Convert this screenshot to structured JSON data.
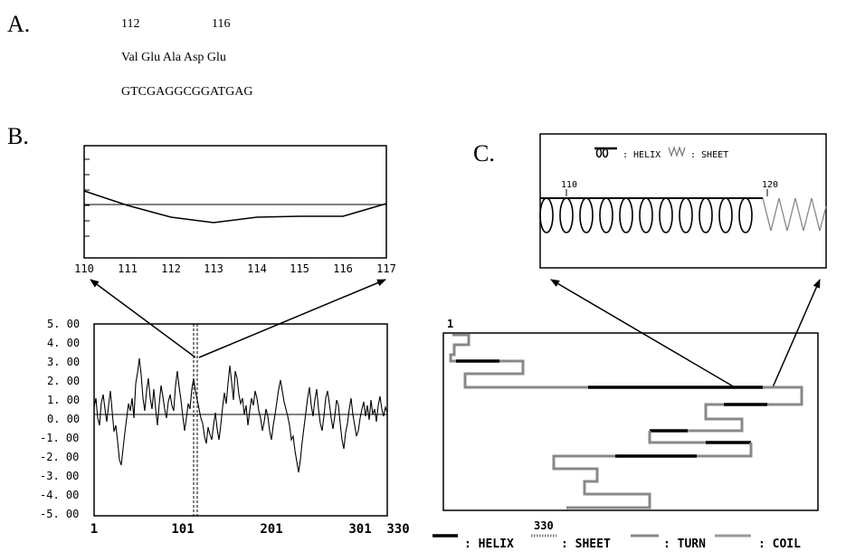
{
  "panel_a": {
    "label": "A.",
    "pos_start": "112",
    "pos_end": "116",
    "residues": "Val Glu Ala Asp Glu",
    "dna": "GTCGAGGCGGATGAG"
  },
  "panel_b": {
    "label": "B.",
    "zoom_x_ticks": [
      "110",
      "111",
      "112",
      "113",
      "114",
      "115",
      "116",
      "117"
    ],
    "main_y_ticks": [
      "5. 00",
      "4. 00",
      "3. 00",
      "2. 00",
      "1. 00",
      "0. 00",
      "-1. 00",
      "-2. 00",
      "-3. 00",
      "-4. 00",
      "-5. 00"
    ],
    "main_x_ticks": [
      "1",
      "101",
      "201",
      "301",
      "330"
    ]
  },
  "panel_c": {
    "label": "C.",
    "zoom_legend_helix": ": HELIX",
    "zoom_legend_sheet": ": SHEET",
    "zoom_ticks": [
      "110",
      "120"
    ],
    "map_start": "1",
    "map_end": "330",
    "legend_helix": ": HELIX",
    "legend_sheet": ": SHEET",
    "legend_turn": ": TURN",
    "legend_coil": ": COIL"
  },
  "colors": {
    "ink": "#000000",
    "sheet_gray": "#8a8a8a",
    "background": "#ffffff"
  }
}
